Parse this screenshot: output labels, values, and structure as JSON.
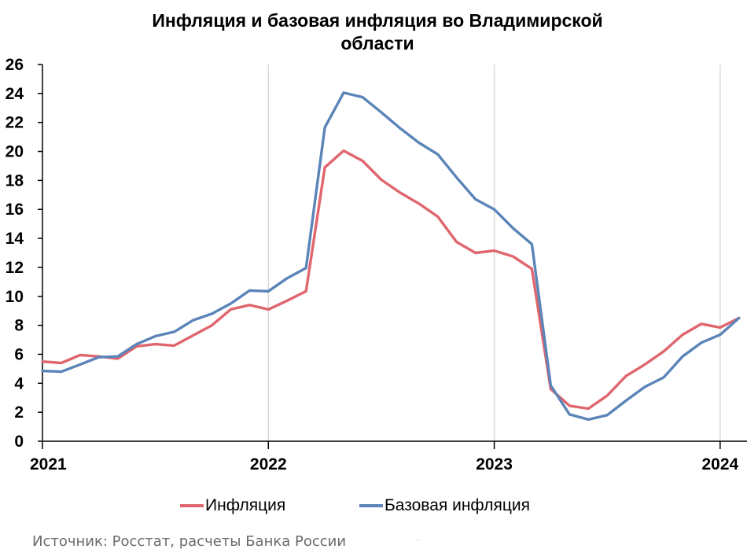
{
  "colors": {
    "inflation": "#E0666E",
    "core": "#5B84B8",
    "grid": "#D9D9D9",
    "axis": "#000000"
  },
  "chart_data": {
    "type": "line",
    "title_lines": [
      "Инфляция и базовая инфляция во Владимирской",
      "области"
    ],
    "xlabel": "",
    "ylabel": "",
    "x_ticks": [
      "2021",
      "2022",
      "2023",
      "2024"
    ],
    "y_ticks": [
      0,
      2,
      4,
      6,
      8,
      10,
      12,
      14,
      16,
      18,
      20,
      22,
      24,
      26
    ],
    "ylim": [
      0,
      26
    ],
    "x_domain": [
      0,
      36
    ],
    "grid": "vertical lines at years",
    "legend": "bottom-center",
    "series": [
      {
        "name": "Инфляция",
        "color": "#E0666E",
        "x": [
          0,
          1,
          2,
          3,
          4,
          5,
          6,
          7,
          8,
          9,
          10,
          11,
          12,
          13,
          14,
          15,
          16,
          17,
          18,
          19,
          20,
          21,
          22,
          23,
          24,
          25,
          26,
          27,
          28,
          29,
          30,
          31,
          32,
          33,
          34,
          35,
          36
        ],
        "values": [
          5.5,
          5.4,
          5.95,
          5.85,
          5.7,
          6.55,
          6.7,
          6.6,
          7.3,
          8.0,
          9.1,
          9.4,
          9.1,
          9.7,
          10.35,
          18.9,
          20.05,
          19.35,
          18.05,
          17.15,
          16.4,
          15.5,
          13.75,
          13.0,
          13.15,
          12.75,
          11.9,
          3.6,
          2.45,
          2.25,
          3.15,
          4.5,
          5.3,
          6.2,
          7.35,
          8.1,
          7.85
        ]
      },
      {
        "name": "Базовая инфляция",
        "color": "#5B84B8",
        "x": [
          0,
          1,
          2,
          3,
          4,
          5,
          6,
          7,
          8,
          9,
          10,
          11,
          12,
          13,
          14,
          15,
          16,
          17,
          18,
          19,
          20,
          21,
          22,
          23,
          24,
          25,
          26,
          27,
          28,
          29,
          30,
          31,
          32,
          33,
          34,
          35,
          36
        ],
        "values": [
          4.85,
          4.8,
          5.3,
          5.8,
          5.85,
          6.7,
          7.25,
          7.55,
          8.35,
          8.8,
          9.5,
          10.4,
          10.35,
          11.25,
          11.95,
          21.65,
          24.05,
          23.75,
          22.7,
          21.6,
          20.6,
          19.8,
          18.2,
          16.7,
          16.0,
          14.7,
          13.6,
          3.85,
          1.85,
          1.5,
          1.8,
          2.8,
          3.75,
          4.4,
          5.85,
          6.8,
          7.35
        ]
      }
    ],
    "end_point": {
      "x": 37,
      "value": 8.5
    }
  },
  "legend": {
    "items": [
      "Инфляция",
      "Базовая инфляция"
    ]
  },
  "source": "Источник: Росстат, расчеты Банка России"
}
